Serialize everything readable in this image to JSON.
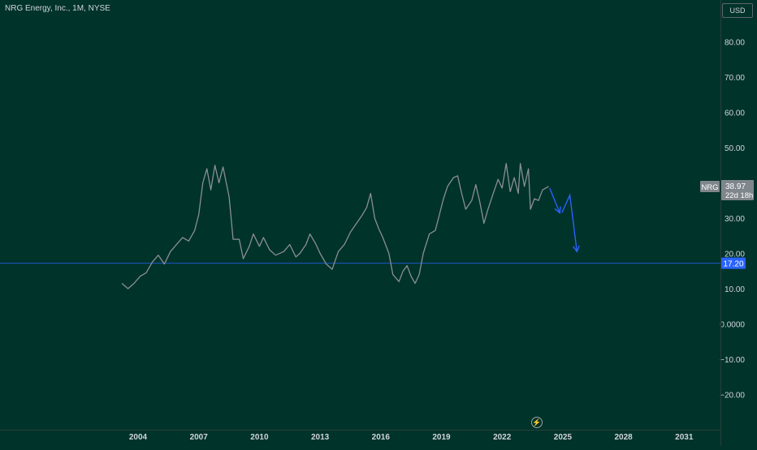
{
  "header": {
    "symbol_title": "NRG Energy, Inc., 1M, NYSE",
    "currency": "USD"
  },
  "chart_data": {
    "type": "line",
    "ylim": [
      -30,
      90
    ],
    "grid": false,
    "y_ticks": [
      {
        "value": 80,
        "label": "80.00"
      },
      {
        "value": 70,
        "label": "70.00"
      },
      {
        "value": 60,
        "label": "60.00"
      },
      {
        "value": 50,
        "label": "50.00"
      },
      {
        "value": 30,
        "label": "30.00"
      },
      {
        "value": 20,
        "label": "20.00"
      },
      {
        "value": 10,
        "label": "10.00"
      },
      {
        "value": 0,
        "label": "0.0000"
      },
      {
        "value": -10,
        "label": "−10.00"
      },
      {
        "value": -20,
        "label": "−20.00"
      }
    ],
    "x_ticks": [
      {
        "value": 2004,
        "label": "2004"
      },
      {
        "value": 2007,
        "label": "2007"
      },
      {
        "value": 2010,
        "label": "2010"
      },
      {
        "value": 2013,
        "label": "2013"
      },
      {
        "value": 2016,
        "label": "2016"
      },
      {
        "value": 2019,
        "label": "2019"
      },
      {
        "value": 2022,
        "label": "2022"
      },
      {
        "value": 2025,
        "label": "2025"
      },
      {
        "value": 2028,
        "label": "2028"
      },
      {
        "value": 2031,
        "label": "2031"
      }
    ],
    "series": [
      {
        "color": "#8a8f93",
        "points": [
          [
            2003.2,
            11.5
          ],
          [
            2003.5,
            10.0
          ],
          [
            2003.8,
            11.5
          ],
          [
            2004.1,
            13.5
          ],
          [
            2004.4,
            14.5
          ],
          [
            2004.7,
            17.5
          ],
          [
            2005.0,
            19.5
          ],
          [
            2005.3,
            17.0
          ],
          [
            2005.6,
            20.5
          ],
          [
            2005.9,
            22.5
          ],
          [
            2006.2,
            24.5
          ],
          [
            2006.5,
            23.5
          ],
          [
            2006.8,
            26.5
          ],
          [
            2007.0,
            31.0
          ],
          [
            2007.2,
            40.0
          ],
          [
            2007.4,
            44.0
          ],
          [
            2007.6,
            38.0
          ],
          [
            2007.8,
            45.0
          ],
          [
            2008.0,
            40.0
          ],
          [
            2008.2,
            44.5
          ],
          [
            2008.5,
            36.0
          ],
          [
            2008.7,
            24.0
          ],
          [
            2009.0,
            24.0
          ],
          [
            2009.2,
            18.5
          ],
          [
            2009.5,
            22.0
          ],
          [
            2009.7,
            25.5
          ],
          [
            2010.0,
            22.0
          ],
          [
            2010.2,
            24.5
          ],
          [
            2010.5,
            21.0
          ],
          [
            2010.8,
            19.5
          ],
          [
            2011.2,
            20.5
          ],
          [
            2011.5,
            22.5
          ],
          [
            2011.8,
            19.0
          ],
          [
            2012.0,
            20.0
          ],
          [
            2012.3,
            22.5
          ],
          [
            2012.5,
            25.5
          ],
          [
            2012.8,
            22.5
          ],
          [
            2013.0,
            20.0
          ],
          [
            2013.3,
            17.0
          ],
          [
            2013.6,
            15.5
          ],
          [
            2013.9,
            20.5
          ],
          [
            2014.2,
            22.5
          ],
          [
            2014.5,
            26.0
          ],
          [
            2014.8,
            28.5
          ],
          [
            2015.1,
            31.0
          ],
          [
            2015.3,
            33.0
          ],
          [
            2015.5,
            37.0
          ],
          [
            2015.7,
            30.0
          ],
          [
            2015.9,
            27.0
          ],
          [
            2016.1,
            24.5
          ],
          [
            2016.4,
            20.0
          ],
          [
            2016.6,
            14.0
          ],
          [
            2016.9,
            12.0
          ],
          [
            2017.1,
            15.0
          ],
          [
            2017.3,
            16.5
          ],
          [
            2017.5,
            13.5
          ],
          [
            2017.7,
            11.5
          ],
          [
            2017.9,
            14.0
          ],
          [
            2018.1,
            20.0
          ],
          [
            2018.4,
            25.5
          ],
          [
            2018.7,
            26.5
          ],
          [
            2018.9,
            31.0
          ],
          [
            2019.1,
            35.5
          ],
          [
            2019.3,
            39.0
          ],
          [
            2019.6,
            41.5
          ],
          [
            2019.8,
            42.0
          ],
          [
            2020.0,
            37.0
          ],
          [
            2020.2,
            32.5
          ],
          [
            2020.5,
            35.0
          ],
          [
            2020.7,
            39.5
          ],
          [
            2020.9,
            34.5
          ],
          [
            2021.1,
            28.5
          ],
          [
            2021.3,
            32.5
          ],
          [
            2021.5,
            36.0
          ],
          [
            2021.8,
            41.0
          ],
          [
            2022.0,
            38.5
          ],
          [
            2022.2,
            45.5
          ],
          [
            2022.4,
            37.5
          ],
          [
            2022.6,
            41.5
          ],
          [
            2022.8,
            37.0
          ],
          [
            2022.9,
            45.5
          ],
          [
            2023.1,
            39.0
          ],
          [
            2023.3,
            44.0
          ],
          [
            2023.4,
            32.5
          ],
          [
            2023.6,
            35.5
          ],
          [
            2023.8,
            35.0
          ],
          [
            2024.0,
            38.0
          ],
          [
            2024.3,
            39.0
          ]
        ]
      }
    ],
    "horizontal_line": {
      "value": 17.2,
      "color": "#2962ff"
    },
    "arrow_paths": [
      {
        "color": "#2962ff",
        "points": [
          [
            2024.35,
            38.5
          ],
          [
            2024.85,
            31.5
          ]
        ]
      },
      {
        "color": "#2962ff",
        "points": [
          [
            2024.95,
            31.5
          ],
          [
            2025.35,
            36.5
          ],
          [
            2025.7,
            20.5
          ]
        ]
      }
    ],
    "labels": {
      "symbol": "NRG",
      "last_price": "38.97",
      "countdown": "22d 18h",
      "line_price": "17.20"
    },
    "colors": {
      "background": "#00332a",
      "axis_text": "#d1d4dc",
      "price_badge": "#7f868c",
      "line_badge": "#2962ff"
    }
  }
}
